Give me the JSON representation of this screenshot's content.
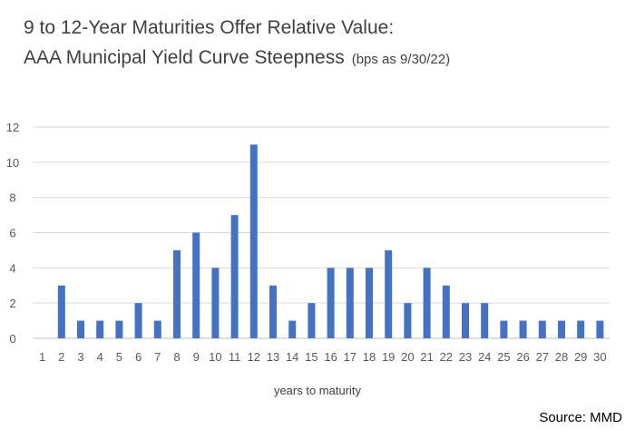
{
  "title": {
    "line1": "9 to 12-Year Maturities Offer Relative Value:",
    "line2": "AAA Municipal Yield Curve Steepness",
    "note": "(bps as 9/30/22)"
  },
  "source": "Source: MMD",
  "chart_data": {
    "type": "bar",
    "title": "9 to 12-Year Maturities Offer Relative Value: AAA Municipal Yield Curve Steepness",
    "subtitle": "(bps as 9/30/22)",
    "xlabel": "years to maturity",
    "ylabel": "",
    "ylim": [
      0,
      12
    ],
    "yticks": [
      0,
      2,
      4,
      6,
      8,
      10,
      12
    ],
    "grid": true,
    "legend": "none",
    "bar_color": "#4472C4",
    "categories": [
      "1",
      "2",
      "3",
      "4",
      "5",
      "6",
      "7",
      "8",
      "9",
      "10",
      "11",
      "12",
      "13",
      "14",
      "15",
      "16",
      "17",
      "18",
      "19",
      "20",
      "21",
      "22",
      "23",
      "24",
      "25",
      "26",
      "27",
      "28",
      "29",
      "30"
    ],
    "values": [
      0,
      3,
      1,
      1,
      1,
      2,
      1,
      5,
      6,
      4,
      7,
      11,
      3,
      1,
      2,
      4,
      4,
      4,
      5,
      2,
      4,
      3,
      2,
      2,
      1,
      1,
      1,
      1,
      1,
      1
    ]
  }
}
